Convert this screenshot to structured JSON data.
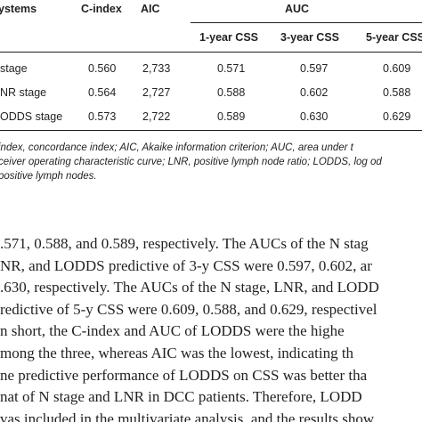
{
  "table": {
    "headers": {
      "systems": "ystems",
      "cindex": "C-index",
      "aic": "AIC",
      "auc": "AUC",
      "css1": "1-year CSS",
      "css3": "3-year CSS",
      "css5": "5-year CSS"
    },
    "rows": [
      {
        "label": "stage",
        "cindex": "0.560",
        "aic": "2,733",
        "css1": "0.571",
        "css3": "0.597",
        "css5": "0.609"
      },
      {
        "label": "NR stage",
        "cindex": "0.564",
        "aic": "2,727",
        "css1": "0.588",
        "css3": "0.602",
        "css5": "0.588"
      },
      {
        "label": "ODDS stage",
        "cindex": "0.573",
        "aic": "2,722",
        "css1": "0.589",
        "css3": "0.630",
        "css5": "0.629"
      }
    ]
  },
  "footnote": {
    "lines": [
      "index, concordance index; AIC, Akaike information criterion; AUC, area under t",
      "ceiver operating characteristic curve; LNR, positive lymph node ratio; LODDS, log od",
      "positive lymph nodes."
    ]
  },
  "body": {
    "lines": [
      ".571, 0.588, and 0.589, respectively. The AUCs of the N stag",
      "NR, and LODDS predictive of 3-y CSS were 0.597, 0.602, ar",
      ".630, respectively. The AUCs of the N stage, LNR, and LODD",
      "redictive of 5-y CSS were 0.609, 0.588, and 0.629, respectivel",
      "n short, the C-index and AUC of LODDS were the highe",
      "mong the three, whereas AIC was the lowest, indicating th",
      "ne predictive performance of LODDS on CSS was better tha",
      "nat of N stage and LNR in DCC patients. Therefore, LODD",
      "vas included in the multivariate analysis, and the results show"
    ]
  }
}
